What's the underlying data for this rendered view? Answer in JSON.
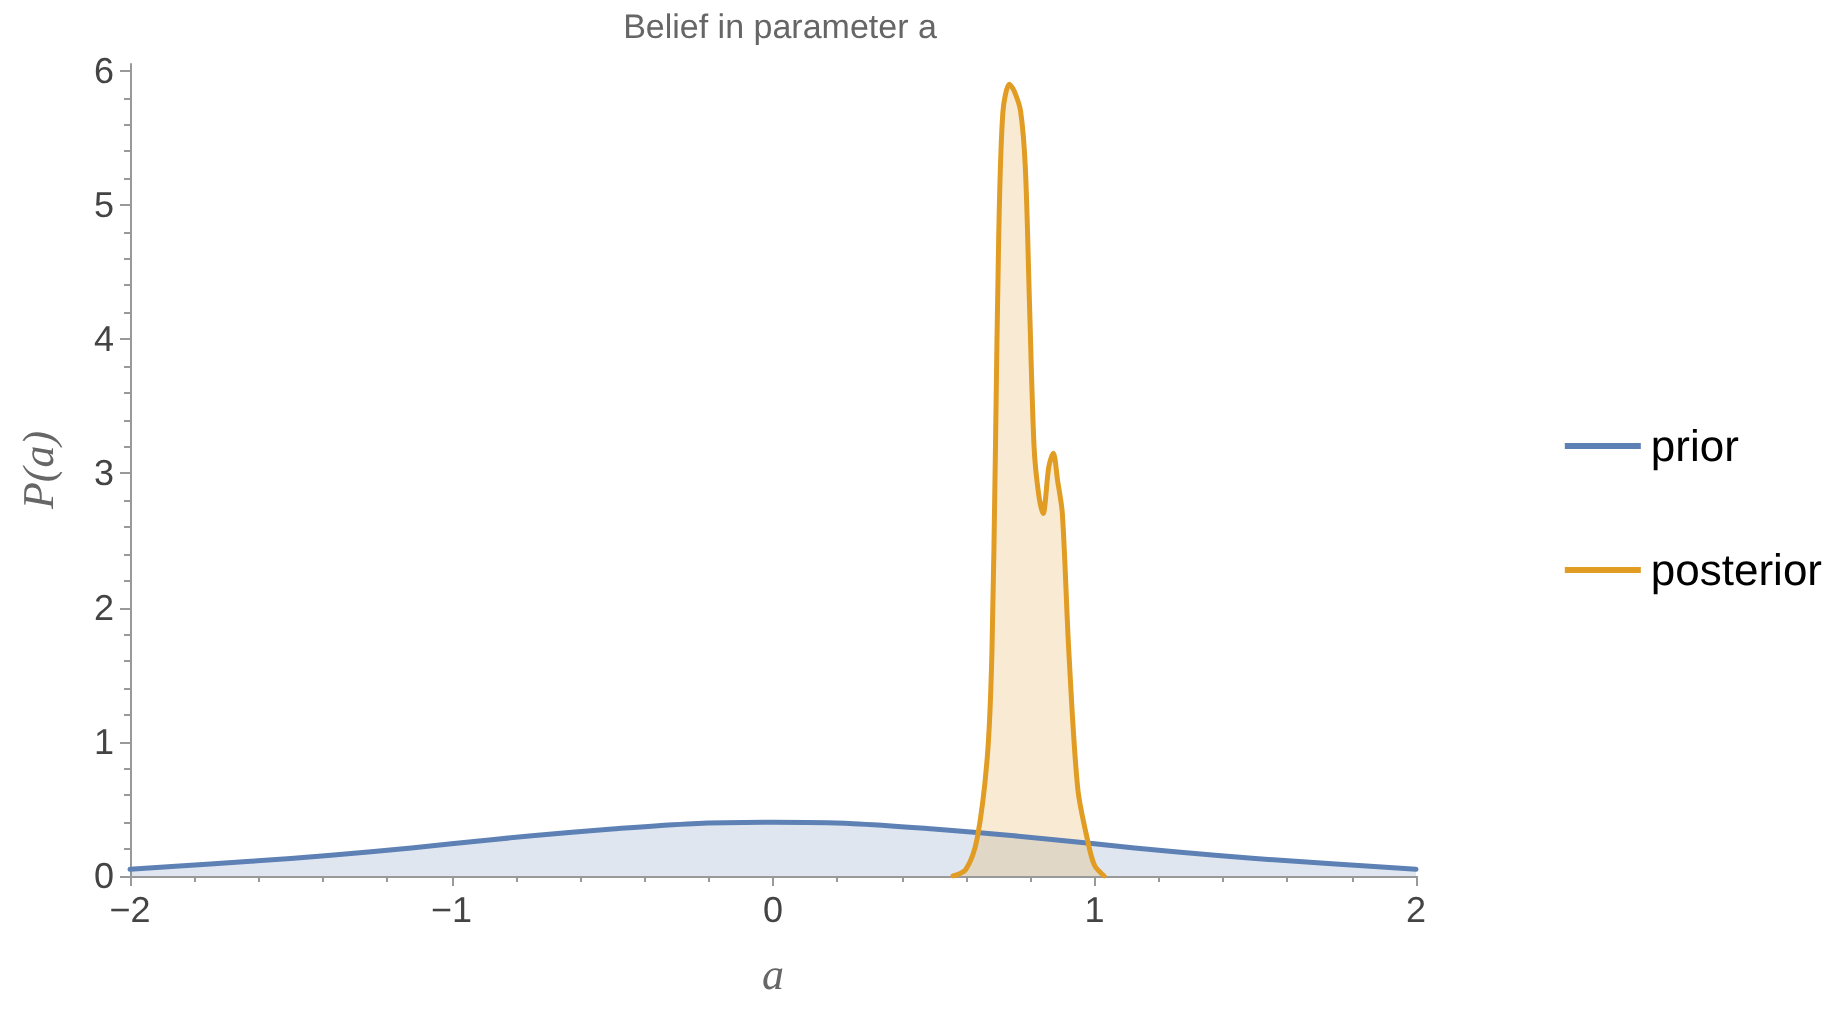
{
  "chart_data": {
    "type": "area",
    "title": "Belief in parameter a",
    "xlabel": "a",
    "ylabel": "P(a)",
    "xlim": [
      -2,
      2
    ],
    "xticks": [
      -2,
      -1,
      0,
      1,
      2
    ],
    "ylim": [
      0,
      6.05
    ],
    "yticks": [
      0,
      1,
      2,
      3,
      4,
      5,
      6
    ],
    "grid": false,
    "legend": "right",
    "marker": "none",
    "line_style": "solid",
    "series": [
      {
        "name": "prior",
        "color": "#5e81b5",
        "x": [
          -2,
          -1.75,
          -1.5,
          -1.25,
          -1,
          -0.75,
          -0.5,
          -0.25,
          0,
          0.25,
          0.5,
          0.75,
          1,
          1.25,
          1.5,
          1.75,
          2
        ],
        "values": [
          0.05,
          0.09,
          0.13,
          0.18,
          0.24,
          0.3,
          0.35,
          0.39,
          0.4,
          0.39,
          0.35,
          0.3,
          0.24,
          0.18,
          0.13,
          0.09,
          0.05
        ]
      },
      {
        "name": "posterior",
        "color": "#e19c24",
        "x": [
          0.56,
          0.6,
          0.635,
          0.667,
          0.681,
          0.692,
          0.702,
          0.715,
          0.735,
          0.75,
          0.77,
          0.785,
          0.798,
          0.812,
          0.826,
          0.84,
          0.858,
          0.872,
          0.885,
          0.9,
          0.92,
          0.948,
          0.98,
          1.0,
          1.03
        ],
        "values": [
          0,
          0.05,
          0.28,
          0.9,
          1.67,
          3.2,
          4.76,
          5.69,
          5.9,
          5.85,
          5.7,
          5.27,
          4.25,
          3.2,
          2.85,
          2.7,
          3.05,
          3.15,
          2.95,
          2.7,
          1.68,
          0.65,
          0.25,
          0.08,
          0
        ]
      }
    ]
  }
}
